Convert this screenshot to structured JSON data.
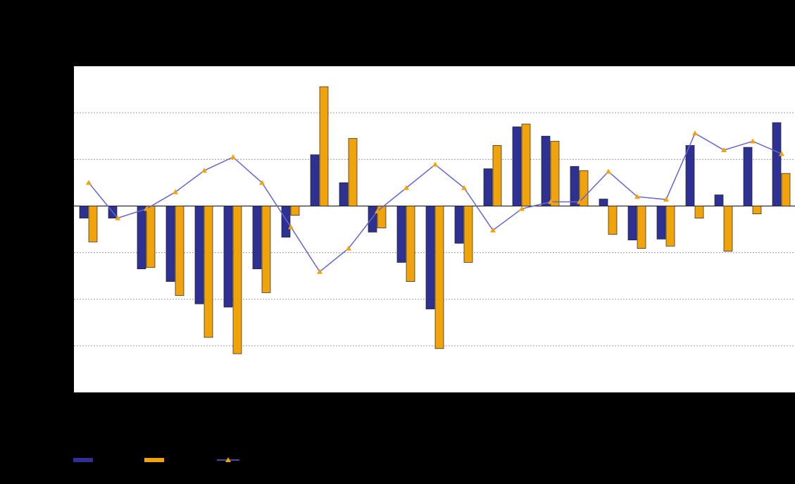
{
  "chart_data": {
    "type": "bar",
    "categories": [
      null,
      null,
      null,
      null,
      null,
      null,
      null,
      null,
      null,
      null,
      null,
      null,
      null,
      null,
      null,
      null,
      null,
      null,
      null,
      null,
      null,
      null,
      null,
      null,
      null
    ],
    "series": [
      {
        "color": "#2e3192",
        "values": [
          -0.26,
          -0.26,
          -1.35,
          -1.62,
          -2.1,
          -2.17,
          -1.35,
          -0.67,
          1.1,
          0.5,
          -0.56,
          -1.21,
          -2.21,
          -0.8,
          0.8,
          1.7,
          1.5,
          0.85,
          0.15,
          -0.73,
          -0.71,
          1.3,
          0.24,
          1.26,
          1.79
        ]
      },
      {
        "color": "#f0a30a",
        "values": [
          -0.77,
          0,
          -1.32,
          -1.92,
          -2.82,
          -3.17,
          -1.86,
          -0.2,
          2.56,
          1.45,
          -0.47,
          -1.62,
          -3.06,
          -1.21,
          1.3,
          1.76,
          1.39,
          0.76,
          -0.61,
          -0.91,
          -0.86,
          -0.26,
          -0.97,
          -0.17,
          0.7
        ]
      },
      {
        "type": "line",
        "color": "#6666cc",
        "marker_color": "#f0a30a",
        "values": [
          0.5,
          -0.26,
          -0.06,
          0.3,
          0.76,
          1.05,
          0.5,
          -0.45,
          -1.41,
          -0.91,
          -0.11,
          0.39,
          0.89,
          0.39,
          -0.52,
          -0.06,
          0.09,
          0.09,
          0.74,
          0.2,
          0.14,
          1.56,
          1.2,
          1.39,
          1.12
        ]
      }
    ],
    "ylim": [
      -4,
      3
    ],
    "yticks": [
      -3,
      -2,
      -1,
      0,
      1,
      2
    ],
    "grid": true
  }
}
